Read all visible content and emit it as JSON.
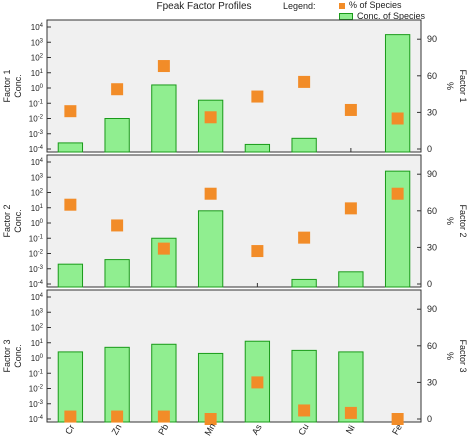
{
  "chart_data": {
    "type": "bar",
    "title": "Fpeak Factor Profiles",
    "legend_title": "Legend:",
    "legend_position": "top-right",
    "legend": {
      "percent_label": "% of Species",
      "conc_label": "Conc. of Species",
      "percent_color": "#f28c28",
      "bar_fill": "#90ee90",
      "bar_stroke": "#1a9a1a"
    },
    "panel_background": "#f0f0f0",
    "categories": [
      "Cr",
      "Zn",
      "Pb",
      "Mn",
      "As",
      "Cu",
      "Ni",
      "Fe"
    ],
    "left_axis_ticks": [
      "10-4",
      "10-3",
      "10-2",
      "10-1",
      "100",
      "101",
      "102",
      "103",
      "104"
    ],
    "left_axis_log_range": [
      -4,
      4
    ],
    "right_axis_ticks": [
      "0",
      "30",
      "60",
      "90"
    ],
    "right_axis_range": [
      0,
      100
    ],
    "panels": [
      {
        "left_label_line1": "Factor 1",
        "left_label_line2": "Conc.",
        "right_label": "Factor 1",
        "percent_unit": "%",
        "conc_log10": [
          -3.6,
          -2.0,
          0.2,
          -0.8,
          -3.7,
          -3.3,
          null,
          3.5
        ],
        "percent": [
          31,
          49,
          68,
          26,
          43,
          55,
          32,
          25
        ]
      },
      {
        "left_label_line1": "Factor 2",
        "left_label_line2": "Conc.",
        "right_label": "Factor 2",
        "percent_unit": "%",
        "conc_log10": [
          -2.7,
          -2.4,
          -1.0,
          0.8,
          null,
          -3.7,
          -3.2,
          3.4
        ],
        "percent": [
          65,
          48,
          29,
          74,
          27,
          38,
          62,
          74
        ]
      },
      {
        "left_label_line1": "Factor 3",
        "left_label_line2": "Conc.",
        "right_label": "Factor 3",
        "percent_unit": "%",
        "conc_log10": [
          0.4,
          0.7,
          0.9,
          0.3,
          1.1,
          0.5,
          0.4,
          null
        ],
        "percent": [
          2,
          2,
          2,
          0,
          30,
          7,
          5,
          0
        ]
      }
    ]
  }
}
